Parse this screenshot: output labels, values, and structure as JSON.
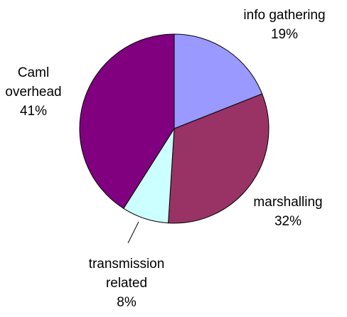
{
  "chart_data": {
    "type": "pie",
    "categories": [
      [
        "info gathering"
      ],
      [
        "marshalling"
      ],
      [
        "transmission",
        "related"
      ],
      [
        "Caml",
        "overhead"
      ]
    ],
    "values": [
      19,
      32,
      8,
      41
    ],
    "value_labels": [
      "19%",
      "32%",
      "8%",
      "41%"
    ],
    "colors": [
      "#9999ff",
      "#993366",
      "#ccffff",
      "#800080"
    ]
  }
}
